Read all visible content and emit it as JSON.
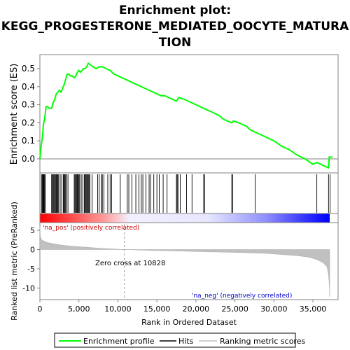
{
  "chart_data": [
    {
      "type": "line",
      "title_line1": "Enrichment plot:",
      "title_line2": "KEGG_PROGESTERONE_MEDIATED_OOCYTE_MATURA",
      "title_line3": "TION",
      "ylabel": "Enrichment score (ES)",
      "ylim": [
        -0.07,
        0.57
      ],
      "yticks": [
        "0.0",
        "0.1",
        "0.2",
        "0.3",
        "0.4",
        "0.5"
      ],
      "ytick_values": [
        0.0,
        0.1,
        0.2,
        0.3,
        0.4,
        0.5
      ],
      "xlim": [
        0,
        38500
      ],
      "series": [
        {
          "name": "Enrichment profile",
          "color": "#00ff00",
          "x": [
            0,
            150,
            300,
            450,
            600,
            800,
            1000,
            1200,
            1500,
            1700,
            1900,
            2100,
            2300,
            2500,
            2700,
            2900,
            3100,
            3300,
            3500,
            3700,
            3900,
            4100,
            4400,
            4600,
            4800,
            5000,
            5200,
            5400,
            5600,
            5800,
            6000,
            6200,
            6500,
            6800,
            7200,
            7600,
            8000,
            8500,
            9000,
            9500,
            10000,
            10500,
            11000,
            11500,
            12000,
            12500,
            13000,
            13500,
            14000,
            14500,
            15000,
            15500,
            16000,
            16500,
            17000,
            17500,
            17800,
            18500,
            19000,
            19500,
            20000,
            20500,
            21000,
            21500,
            22000,
            22500,
            23000,
            23500,
            24000,
            24600,
            24800,
            25500,
            26000,
            26500,
            27000,
            27500,
            28000,
            29000,
            30000,
            31000,
            32000,
            33000,
            34000,
            35000,
            35500,
            36000,
            36500,
            37000,
            37100,
            37500
          ],
          "y": [
            0.0,
            0.07,
            0.11,
            0.19,
            0.22,
            0.29,
            0.29,
            0.28,
            0.28,
            0.31,
            0.33,
            0.36,
            0.37,
            0.38,
            0.37,
            0.39,
            0.41,
            0.44,
            0.47,
            0.47,
            0.46,
            0.46,
            0.45,
            0.46,
            0.48,
            0.49,
            0.48,
            0.49,
            0.5,
            0.5,
            0.51,
            0.53,
            0.52,
            0.51,
            0.5,
            0.51,
            0.51,
            0.5,
            0.49,
            0.47,
            0.46,
            0.45,
            0.44,
            0.43,
            0.42,
            0.41,
            0.4,
            0.39,
            0.38,
            0.37,
            0.36,
            0.35,
            0.35,
            0.34,
            0.33,
            0.32,
            0.34,
            0.33,
            0.32,
            0.31,
            0.3,
            0.29,
            0.28,
            0.27,
            0.26,
            0.25,
            0.24,
            0.22,
            0.21,
            0.2,
            0.21,
            0.2,
            0.19,
            0.18,
            0.16,
            0.15,
            0.14,
            0.12,
            0.1,
            0.07,
            0.05,
            0.02,
            0.0,
            -0.03,
            -0.02,
            -0.03,
            -0.04,
            -0.05,
            0.01,
            0.01
          ]
        }
      ]
    },
    {
      "type": "hits",
      "name": "Hits",
      "hit_positions": [
        200,
        300,
        380,
        450,
        520,
        600,
        700,
        1500,
        1600,
        1700,
        1800,
        1900,
        2000,
        2100,
        2200,
        2300,
        2400,
        2600,
        2800,
        3000,
        3100,
        3200,
        3300,
        3400,
        3600,
        4400,
        4500,
        4600,
        4700,
        4800,
        4900,
        5000,
        5100,
        5300,
        5500,
        5700,
        5800,
        5900,
        6000,
        6100,
        6200,
        6300,
        6400,
        6700,
        7400,
        7600,
        7900,
        8000,
        8200,
        8700,
        9000,
        9200,
        10300,
        11200,
        11400,
        11800,
        12300,
        12700,
        13000,
        13200,
        13600,
        14000,
        14200,
        14600,
        15000,
        15300,
        15800,
        16300,
        17500,
        17600,
        17700,
        18000,
        18800,
        19500,
        21000,
        21100,
        24600,
        24700,
        27600,
        35500,
        37000,
        37200
      ]
    },
    {
      "type": "heatmap",
      "name": "ranked_list_band",
      "colors": [
        "#ff0000",
        "#ff7f7f",
        "#ffffff",
        "#7f7fff",
        "#0000ff"
      ]
    },
    {
      "type": "area",
      "ylabel": "Ranked list metric (PreRanked)",
      "xlabel": "Rank in Ordered Dataset",
      "ylim": [
        -13,
        7
      ],
      "yticks": [
        "5",
        "0",
        "-5",
        "-10"
      ],
      "ytick_values": [
        5,
        0,
        -5,
        -10
      ],
      "xticks": [
        "0",
        "5,000",
        "10,000",
        "15,000",
        "20,000",
        "25,000",
        "30,000",
        "35,000"
      ],
      "xtick_values": [
        0,
        5000,
        10000,
        15000,
        20000,
        25000,
        30000,
        35000
      ],
      "zero_cross": 10828,
      "zero_cross_label": "Zero cross at 10828",
      "pos_label": "'na_pos' (positively correlated)",
      "neg_label": "'na_neg' (negatively correlated)",
      "series": [
        {
          "name": "Ranking metric scores",
          "color": "#c0c0c0",
          "x": [
            0,
            50,
            200,
            500,
            1000,
            2000,
            3000,
            4000,
            6000,
            8000,
            10828,
            14000,
            18000,
            22000,
            26000,
            29000,
            31000,
            33000,
            34500,
            35500,
            36300,
            36800,
            37000,
            37100,
            37150
          ],
          "y": [
            6.0,
            3.5,
            2.6,
            2.2,
            1.8,
            1.4,
            1.1,
            0.9,
            0.6,
            0.3,
            0.0,
            -0.2,
            -0.4,
            -0.6,
            -0.8,
            -1.0,
            -1.3,
            -1.6,
            -2.0,
            -2.6,
            -3.4,
            -4.5,
            -6.5,
            -9.0,
            -12.2
          ]
        }
      ]
    }
  ],
  "legend": {
    "items": [
      {
        "label": "Enrichment profile",
        "color": "#00ff00"
      },
      {
        "label": "Hits",
        "color": "#000000"
      },
      {
        "label": "Ranking metric scores",
        "color": "#c0c0c0"
      }
    ]
  }
}
